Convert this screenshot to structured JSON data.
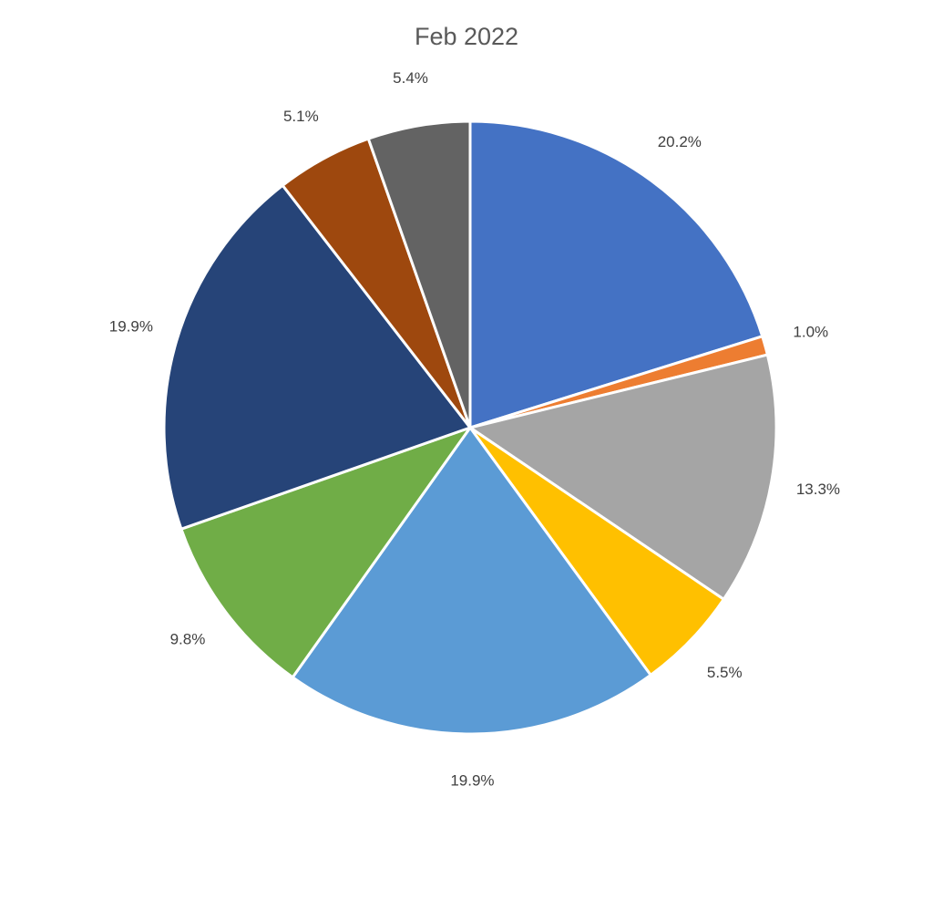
{
  "chart_data": {
    "type": "pie",
    "title": "Feb 2022",
    "values": [
      20.2,
      1.0,
      13.3,
      5.5,
      19.9,
      9.8,
      19.9,
      5.1,
      5.4
    ],
    "value_labels": [
      "20.2%",
      "1.0%",
      "13.3%",
      "5.5%",
      "19.9%",
      "9.8%",
      "19.9%",
      "5.1%",
      "5.4%"
    ],
    "colors": [
      "#4472c4",
      "#ed7d31",
      "#a5a5a5",
      "#ffc000",
      "#5b9bd5",
      "#70ad47",
      "#264478",
      "#9e480e",
      "#636363"
    ]
  }
}
